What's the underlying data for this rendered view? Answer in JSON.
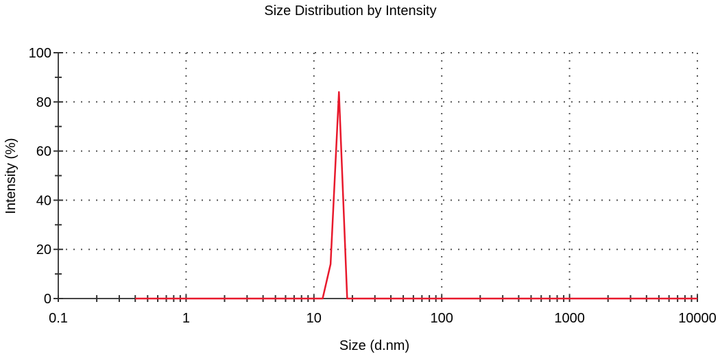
{
  "chart_data": {
    "type": "line",
    "title": "Size Distribution by Intensity",
    "xlabel": "Size (d.nm)",
    "ylabel": "Intensity (%)",
    "x_scale": "log",
    "xlim": [
      0.1,
      10000
    ],
    "ylim": [
      0,
      100
    ],
    "x_ticks": [
      0.1,
      1,
      10,
      100,
      1000,
      10000
    ],
    "x_tick_labels": [
      "0.1",
      "1",
      "10",
      "100",
      "1000",
      "10000"
    ],
    "y_ticks": [
      0,
      20,
      40,
      60,
      80,
      100
    ],
    "y_tick_labels": [
      "0",
      "20",
      "40",
      "60",
      "80",
      "100"
    ],
    "grid": true,
    "series": [
      {
        "color": "#e8192c",
        "x": [
          0.4,
          5,
          11.7,
          13.5,
          15.7,
          18.2,
          21,
          100,
          1000,
          10000
        ],
        "y": [
          0,
          0,
          0,
          14,
          84,
          0,
          0,
          0,
          0,
          0
        ]
      }
    ]
  }
}
